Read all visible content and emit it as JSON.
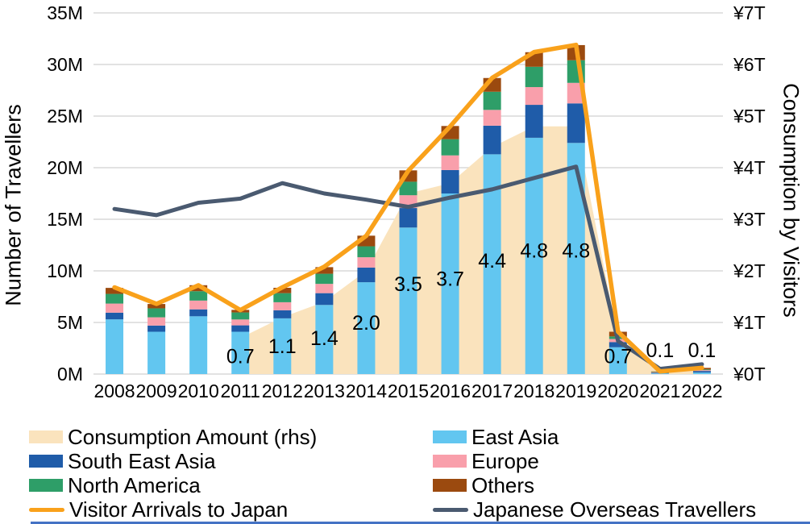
{
  "chart_data": {
    "type": "combo-stacked-bar-area-line",
    "years": [
      "2008",
      "2009",
      "2010",
      "2011",
      "2012",
      "2013",
      "2014",
      "2015",
      "2016",
      "2017",
      "2018",
      "2019",
      "2020",
      "2021",
      "2022"
    ],
    "left_axis": {
      "title": "Number of Travellers",
      "ticks": [
        "0M",
        "5M",
        "10M",
        "15M",
        "20M",
        "25M",
        "30M",
        "35M"
      ],
      "min": 0,
      "max": 35,
      "unit": "million travellers"
    },
    "right_axis": {
      "title": "Consumption by Visitors",
      "ticks": [
        "¥0T",
        "¥1T",
        "¥2T",
        "¥3T",
        "¥4T",
        "¥5T",
        "¥6T",
        "¥7T"
      ],
      "min": 0,
      "max": 7,
      "unit": "trillion yen"
    },
    "grid": {
      "color": "#D8D8D8",
      "horizontal": true
    },
    "series": [
      {
        "name": "Consumption Amount (rhs)",
        "type": "area",
        "axis": "right",
        "color": "#FAE3BD",
        "values": [
          null,
          null,
          null,
          0.7,
          1.1,
          1.4,
          2.0,
          3.5,
          3.7,
          4.4,
          4.8,
          4.8,
          0.7,
          0.1,
          0.1
        ],
        "point_labels": [
          null,
          null,
          null,
          "0.7",
          "1.1",
          "1.4",
          "2.0",
          "3.5",
          "3.7",
          "4.4",
          "4.8",
          "4.8",
          "0.7",
          "0.1",
          "0.1"
        ]
      },
      {
        "name": "East Asia",
        "type": "bar",
        "axis": "left",
        "color": "#62C6F0",
        "values": [
          5.3,
          4.1,
          5.6,
          4.1,
          5.4,
          6.7,
          8.9,
          14.2,
          17.5,
          21.3,
          22.9,
          22.4,
          2.6,
          0.07,
          0.15
        ]
      },
      {
        "name": "South East Asia",
        "type": "bar",
        "axis": "left",
        "color": "#1F5CA9",
        "values": [
          0.65,
          0.6,
          0.67,
          0.62,
          0.78,
          1.14,
          1.42,
          1.89,
          2.27,
          2.77,
          3.19,
          3.83,
          0.5,
          0.05,
          0.15
        ]
      },
      {
        "name": "Europe",
        "type": "bar",
        "axis": "left",
        "color": "#F99FAB",
        "values": [
          0.88,
          0.8,
          0.85,
          0.57,
          0.78,
          0.9,
          1.0,
          1.24,
          1.42,
          1.53,
          1.72,
          1.99,
          0.3,
          0.05,
          0.08
        ]
      },
      {
        "name": "North America",
        "type": "bar",
        "axis": "left",
        "color": "#2E9E68",
        "values": [
          0.94,
          0.87,
          0.91,
          0.68,
          0.88,
          0.98,
          1.06,
          1.31,
          1.57,
          1.76,
          1.97,
          2.19,
          0.25,
          0.04,
          0.07
        ]
      },
      {
        "name": "Others",
        "type": "bar",
        "axis": "left",
        "color": "#9B4A0F",
        "values": [
          0.58,
          0.42,
          0.58,
          0.25,
          0.52,
          0.64,
          1.03,
          1.1,
          1.28,
          1.33,
          1.41,
          1.47,
          0.45,
          0.04,
          0.15
        ]
      },
      {
        "name": "Visitor Arrivals to Japan",
        "type": "line",
        "axis": "left",
        "color": "#F9A11B",
        "values": [
          8.4,
          6.8,
          8.6,
          6.2,
          8.4,
          10.4,
          13.4,
          19.7,
          24.0,
          28.7,
          31.2,
          31.9,
          4.1,
          0.25,
          0.6
        ]
      },
      {
        "name": "Japanese Overseas Travellers",
        "type": "line",
        "axis": "left",
        "color": "#4A5A70",
        "values": [
          16.0,
          15.4,
          16.6,
          17.0,
          18.5,
          17.5,
          16.9,
          16.2,
          17.1,
          17.9,
          19.0,
          20.1,
          3.2,
          0.5,
          0.95
        ]
      }
    ],
    "legend": [
      {
        "label": "Consumption Amount (rhs)",
        "swatch": "box",
        "color": "#FAE3BD"
      },
      {
        "label": "East Asia",
        "swatch": "box",
        "color": "#62C6F0"
      },
      {
        "label": "South East Asia",
        "swatch": "box",
        "color": "#1F5CA9"
      },
      {
        "label": "Europe",
        "swatch": "box",
        "color": "#F99FAB"
      },
      {
        "label": "North America",
        "swatch": "box",
        "color": "#2E9E68"
      },
      {
        "label": "Others",
        "swatch": "box",
        "color": "#9B4A0F"
      },
      {
        "label": "Visitor Arrivals to Japan",
        "swatch": "line",
        "color": "#F9A11B"
      },
      {
        "label": "Japanese Overseas Travellers",
        "swatch": "line",
        "color": "#4A5A70"
      }
    ]
  }
}
